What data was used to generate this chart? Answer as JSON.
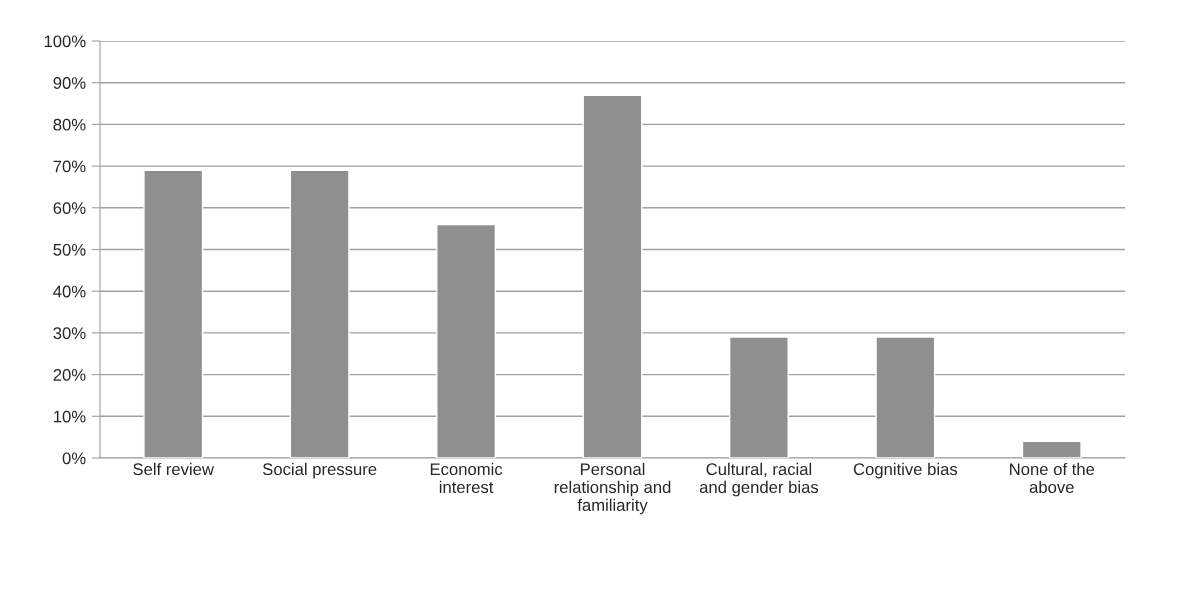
{
  "chart_data": {
    "type": "bar",
    "categories": [
      "Self review",
      "Social pressure",
      "Economic interest",
      "Personal relationship and familiarity",
      "Cultural, racial and gender bias",
      "Cognitive bias",
      "None of the above"
    ],
    "values": [
      69,
      69,
      56,
      87,
      29,
      29,
      4
    ],
    "color": "#8f8f8f",
    "ylim": [
      0,
      100
    ],
    "yticks": [
      {
        "value": 0,
        "label": "0%"
      },
      {
        "value": 10,
        "label": "10%"
      },
      {
        "value": 20,
        "label": "20%"
      },
      {
        "value": 30,
        "label": "30%"
      },
      {
        "value": 40,
        "label": "40%"
      },
      {
        "value": 50,
        "label": "50%"
      },
      {
        "value": 60,
        "label": "60%"
      },
      {
        "value": 70,
        "label": "70%"
      },
      {
        "value": 80,
        "label": "80%"
      },
      {
        "value": 90,
        "label": "90%"
      },
      {
        "value": 100,
        "label": "100%"
      }
    ],
    "grid": "y",
    "legend": false
  }
}
